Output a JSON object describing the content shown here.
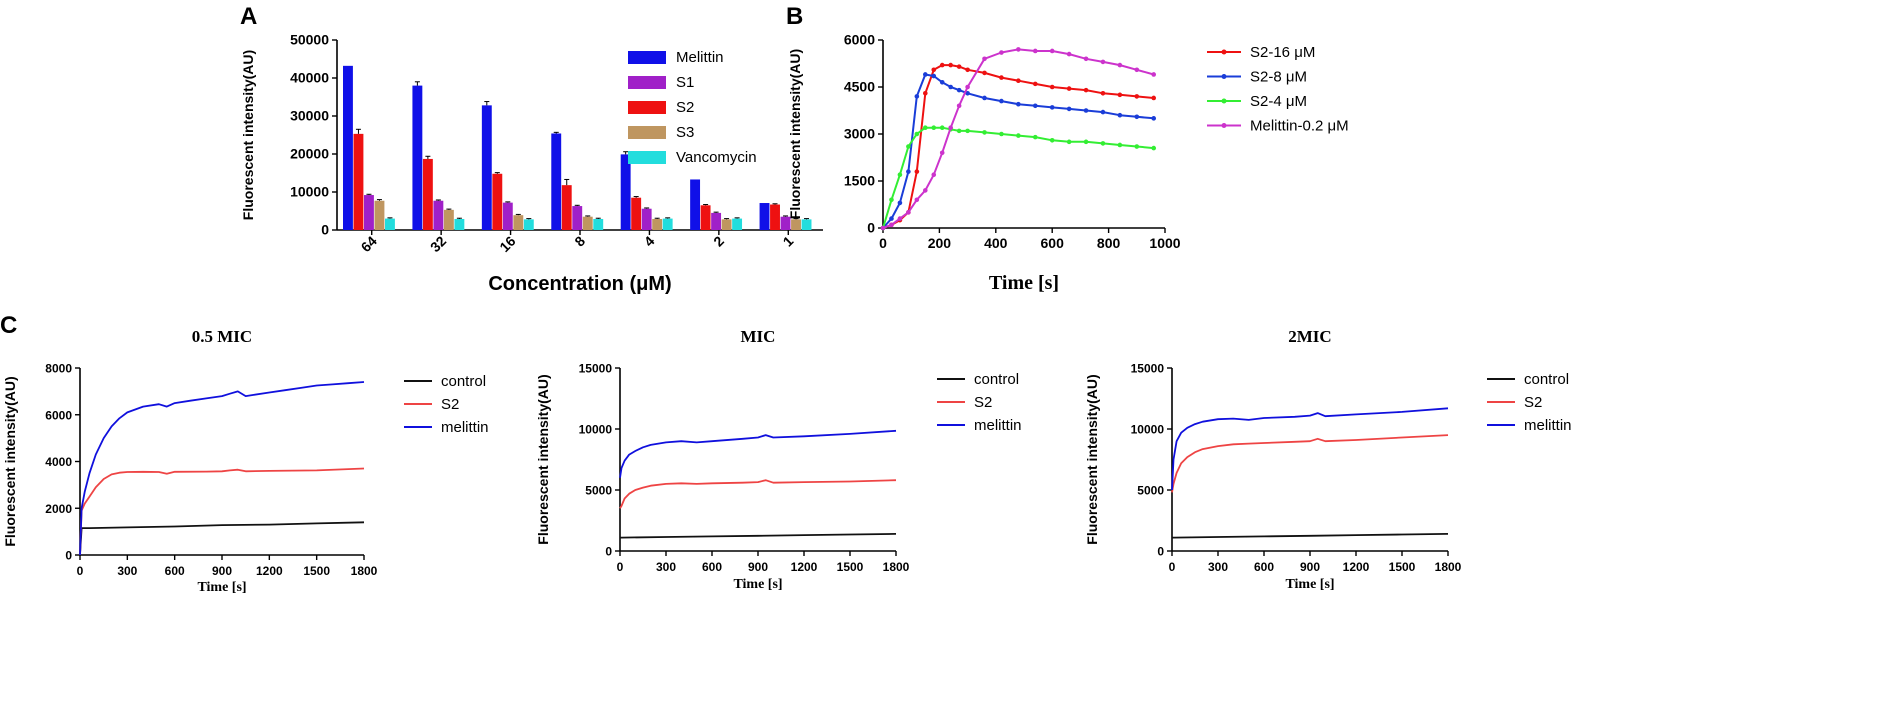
{
  "figure": {
    "panel_labels": [
      "A",
      "B",
      "C"
    ]
  },
  "chart_data": [
    {
      "id": "A",
      "type": "bar",
      "panel_label": "A",
      "xlabel": "Concentration (μM)",
      "ylabel": "Fluorescent intensity(AU)",
      "ylim": [
        0,
        50000
      ],
      "yticks": [
        "0",
        "10000",
        "20000",
        "30000",
        "40000",
        "50000"
      ],
      "categories": [
        "64",
        "32",
        "16",
        "8",
        "4",
        "2",
        "1"
      ],
      "legend_position": "right",
      "series": [
        {
          "name": "Melittin",
          "color": "#1010e8",
          "values": [
            43200,
            38000,
            32800,
            25400,
            19900,
            13300,
            7100
          ],
          "errors": [
            0,
            1000,
            1000,
            300,
            700,
            0,
            0
          ]
        },
        {
          "name": "S1",
          "color": "#a020c8",
          "values": [
            9200,
            7700,
            7200,
            6300,
            5600,
            4500,
            3500
          ],
          "errors": [
            200,
            200,
            200,
            200,
            200,
            200,
            200
          ]
        },
        {
          "name": "S2",
          "color": "#ee1111",
          "values": [
            25300,
            18700,
            14800,
            11800,
            8500,
            6500,
            6700
          ],
          "errors": [
            1200,
            700,
            300,
            1500,
            300,
            200,
            200
          ]
        },
        {
          "name": "S3",
          "color": "#bf9660",
          "values": [
            7700,
            5300,
            3900,
            3500,
            2900,
            2800,
            2800
          ],
          "errors": [
            300,
            200,
            200,
            200,
            200,
            200,
            200
          ]
        },
        {
          "name": "Vancomycin",
          "color": "#22dddd",
          "values": [
            3000,
            2900,
            2800,
            2900,
            3000,
            3000,
            2800
          ],
          "errors": [
            200,
            200,
            200,
            200,
            200,
            200,
            200
          ]
        }
      ]
    },
    {
      "id": "B",
      "type": "line",
      "panel_label": "B",
      "xlabel": "Time [s]",
      "ylabel": "Fluorescent intensity(AU)",
      "xlim": [
        0,
        1000
      ],
      "ylim": [
        0,
        6000
      ],
      "xticks": [
        "0",
        "200",
        "400",
        "600",
        "800",
        "1000"
      ],
      "yticks": [
        "0",
        "1500",
        "3000",
        "4500",
        "6000"
      ],
      "legend_position": "top-right",
      "series": [
        {
          "name": "S2-16 μM",
          "color": "#ee1111",
          "markers": true,
          "x": [
            0,
            30,
            60,
            90,
            120,
            150,
            180,
            210,
            240,
            270,
            300,
            360,
            420,
            480,
            540,
            600,
            660,
            720,
            780,
            840,
            900,
            960
          ],
          "y": [
            0,
            100,
            250,
            500,
            1800,
            4300,
            5050,
            5200,
            5200,
            5150,
            5050,
            4950,
            4800,
            4700,
            4600,
            4500,
            4450,
            4400,
            4300,
            4250,
            4200,
            4150
          ]
        },
        {
          "name": "S2-8 μM",
          "color": "#1a3dd8",
          "markers": true,
          "x": [
            0,
            30,
            60,
            90,
            120,
            150,
            180,
            210,
            240,
            270,
            300,
            360,
            420,
            480,
            540,
            600,
            660,
            720,
            780,
            840,
            900,
            960
          ],
          "y": [
            0,
            300,
            800,
            1800,
            4200,
            4900,
            4850,
            4650,
            4500,
            4400,
            4300,
            4150,
            4050,
            3950,
            3900,
            3850,
            3800,
            3750,
            3700,
            3600,
            3550,
            3500
          ]
        },
        {
          "name": "S2-4 μM",
          "color": "#33ee33",
          "markers": true,
          "x": [
            0,
            30,
            60,
            90,
            120,
            150,
            180,
            210,
            240,
            270,
            300,
            360,
            420,
            480,
            540,
            600,
            660,
            720,
            780,
            840,
            900,
            960
          ],
          "y": [
            0,
            900,
            1700,
            2600,
            3000,
            3200,
            3200,
            3200,
            3150,
            3100,
            3100,
            3050,
            3000,
            2950,
            2900,
            2800,
            2750,
            2750,
            2700,
            2650,
            2600,
            2550
          ]
        },
        {
          "name": "Melittin-0.2 μM",
          "color": "#cc33cc",
          "markers": true,
          "x": [
            0,
            30,
            60,
            90,
            120,
            150,
            180,
            210,
            240,
            270,
            300,
            360,
            420,
            480,
            540,
            600,
            660,
            720,
            780,
            840,
            900,
            960
          ],
          "y": [
            0,
            100,
            300,
            500,
            900,
            1200,
            1700,
            2400,
            3200,
            3900,
            4500,
            5400,
            5600,
            5700,
            5650,
            5650,
            5550,
            5400,
            5300,
            5200,
            5050,
            4900
          ]
        }
      ]
    },
    {
      "id": "C1",
      "type": "line",
      "panel_label": "C",
      "title": "0.5 MIC",
      "xlabel": "Time [s]",
      "ylabel": "Fluorescent intensity(AU)",
      "xlim": [
        0,
        1800
      ],
      "ylim": [
        0,
        8000
      ],
      "xticks": [
        "0",
        "300",
        "600",
        "900",
        "1200",
        "1500",
        "1800"
      ],
      "yticks": [
        "0",
        "2000",
        "4000",
        "6000",
        "8000"
      ],
      "legend_position": "top-right",
      "series": [
        {
          "name": "control",
          "color": "#111111",
          "x": [
            0,
            10,
            60,
            300,
            600,
            900,
            1200,
            1500,
            1800
          ],
          "y": [
            0,
            1150,
            1150,
            1180,
            1220,
            1280,
            1300,
            1350,
            1400
          ]
        },
        {
          "name": "S2",
          "color": "#ee4444",
          "x": [
            0,
            10,
            30,
            60,
            100,
            150,
            200,
            250,
            300,
            400,
            500,
            550,
            600,
            800,
            900,
            950,
            1000,
            1050,
            1200,
            1500,
            1800
          ],
          "y": [
            0,
            1900,
            2200,
            2500,
            2900,
            3250,
            3450,
            3520,
            3550,
            3560,
            3550,
            3480,
            3560,
            3570,
            3580,
            3620,
            3650,
            3580,
            3600,
            3620,
            3700
          ]
        },
        {
          "name": "melittin",
          "color": "#1010dd",
          "x": [
            0,
            10,
            30,
            60,
            100,
            150,
            200,
            250,
            300,
            400,
            500,
            550,
            600,
            700,
            800,
            900,
            950,
            1000,
            1050,
            1100,
            1200,
            1300,
            1400,
            1500,
            1600,
            1700,
            1800
          ],
          "y": [
            0,
            2000,
            2700,
            3500,
            4300,
            5000,
            5500,
            5850,
            6100,
            6350,
            6450,
            6350,
            6500,
            6600,
            6700,
            6800,
            6900,
            7000,
            6800,
            6850,
            6950,
            7050,
            7150,
            7250,
            7300,
            7350,
            7400
          ]
        }
      ]
    },
    {
      "id": "C2",
      "type": "line",
      "panel_label": "",
      "title": "MIC",
      "xlabel": "Time [s]",
      "ylabel": "Fluorescent intensity(AU)",
      "xlim": [
        0,
        1800
      ],
      "ylim": [
        0,
        15000
      ],
      "xticks": [
        "0",
        "300",
        "600",
        "900",
        "1200",
        "1500",
        "1800"
      ],
      "yticks": [
        "0",
        "5000",
        "10000",
        "15000"
      ],
      "legend_position": "top-right",
      "series": [
        {
          "name": "control",
          "color": "#111111",
          "x": [
            0,
            10,
            300,
            600,
            900,
            1200,
            1500,
            1800
          ],
          "y": [
            1100,
            1100,
            1150,
            1200,
            1250,
            1300,
            1350,
            1400
          ]
        },
        {
          "name": "S2",
          "color": "#ee4444",
          "x": [
            0,
            10,
            30,
            60,
            100,
            150,
            200,
            300,
            400,
            500,
            600,
            800,
            900,
            950,
            1000,
            1200,
            1500,
            1800
          ],
          "y": [
            3500,
            3700,
            4300,
            4700,
            5000,
            5200,
            5350,
            5500,
            5550,
            5500,
            5550,
            5600,
            5650,
            5800,
            5600,
            5650,
            5700,
            5800
          ]
        },
        {
          "name": "melittin",
          "color": "#1010dd",
          "x": [
            0,
            10,
            30,
            60,
            100,
            150,
            200,
            300,
            400,
            500,
            600,
            800,
            900,
            950,
            1000,
            1200,
            1500,
            1800
          ],
          "y": [
            6000,
            6800,
            7400,
            7900,
            8200,
            8500,
            8700,
            8900,
            9000,
            8900,
            9000,
            9200,
            9300,
            9500,
            9300,
            9400,
            9600,
            9850
          ]
        }
      ]
    },
    {
      "id": "C3",
      "type": "line",
      "panel_label": "",
      "title": "2MIC",
      "xlabel": "Time [s]",
      "ylabel": "Fluorescent intensity(AU)",
      "xlim": [
        0,
        1800
      ],
      "ylim": [
        0,
        15000
      ],
      "xticks": [
        "0",
        "300",
        "600",
        "900",
        "1200",
        "1500",
        "1800"
      ],
      "yticks": [
        "0",
        "5000",
        "10000",
        "15000"
      ],
      "legend_position": "top-right",
      "series": [
        {
          "name": "control",
          "color": "#111111",
          "x": [
            0,
            10,
            300,
            600,
            900,
            1200,
            1500,
            1800
          ],
          "y": [
            1100,
            1100,
            1150,
            1200,
            1250,
            1300,
            1350,
            1400
          ]
        },
        {
          "name": "S2",
          "color": "#ee4444",
          "x": [
            0,
            10,
            30,
            60,
            100,
            150,
            200,
            300,
            400,
            500,
            600,
            800,
            900,
            950,
            1000,
            1200,
            1500,
            1800
          ],
          "y": [
            4800,
            5500,
            6400,
            7200,
            7700,
            8100,
            8350,
            8600,
            8750,
            8800,
            8850,
            8950,
            9000,
            9200,
            9000,
            9100,
            9300,
            9500
          ]
        },
        {
          "name": "melittin",
          "color": "#1010dd",
          "x": [
            0,
            10,
            30,
            60,
            100,
            150,
            200,
            300,
            400,
            500,
            600,
            800,
            900,
            950,
            1000,
            1200,
            1500,
            1800
          ],
          "y": [
            5000,
            7500,
            9000,
            9700,
            10100,
            10400,
            10600,
            10800,
            10850,
            10750,
            10900,
            11000,
            11100,
            11300,
            11050,
            11200,
            11400,
            11700
          ]
        }
      ]
    }
  ]
}
